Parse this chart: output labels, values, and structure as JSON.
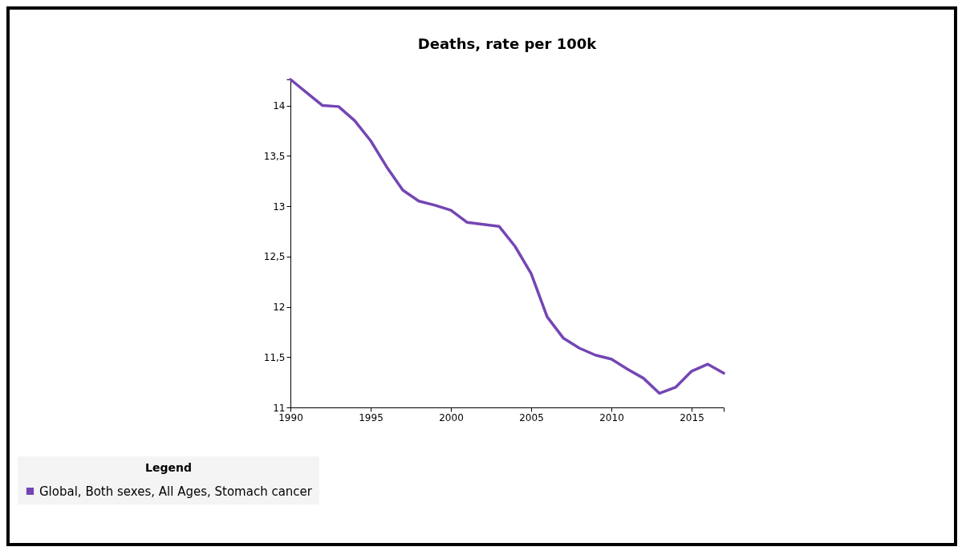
{
  "chart_data": {
    "type": "line",
    "title": "Deaths, rate per 100k",
    "legend_title": "Legend",
    "x": [
      1990,
      1991,
      1992,
      1993,
      1994,
      1995,
      1996,
      1997,
      1998,
      1999,
      2000,
      2001,
      2002,
      2003,
      2004,
      2005,
      2006,
      2007,
      2008,
      2009,
      2010,
      2011,
      2012,
      2013,
      2014,
      2015,
      2016,
      2017
    ],
    "series": [
      {
        "name": "Global, Both sexes, All Ages, Stomach cancer",
        "color": "#7446b4",
        "values": [
          14.26,
          14.13,
          14.0,
          13.99,
          13.85,
          13.65,
          13.39,
          13.16,
          13.05,
          13.01,
          12.96,
          12.84,
          12.82,
          12.8,
          12.6,
          12.33,
          11.9,
          11.69,
          11.59,
          11.52,
          11.48,
          11.38,
          11.29,
          11.14,
          11.2,
          11.36,
          11.43,
          11.34
        ]
      }
    ],
    "xlim": [
      1990,
      2017
    ],
    "xticks": [
      1990,
      1995,
      2000,
      2005,
      2010,
      2015,
      {
        "value": 2017,
        "label": null
      }
    ],
    "ylim": [
      11,
      14.26
    ],
    "yticks": [
      11,
      {
        "value": 11.5,
        "label": "11,5"
      },
      12,
      {
        "value": 12.5,
        "label": "12,5"
      },
      13,
      {
        "value": 13.5,
        "label": "13,5"
      },
      14,
      {
        "value": 14.26,
        "label": null
      }
    ],
    "grid": false,
    "legend": "bottom",
    "marker": "none",
    "line_style": "solid"
  }
}
